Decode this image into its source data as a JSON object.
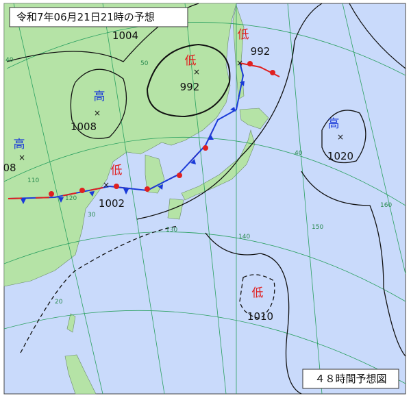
{
  "header": {
    "title": "令和7年06月21日21時の予想"
  },
  "footer": {
    "label": "４８時間予想図"
  },
  "systems": [
    {
      "kind": "低",
      "pressure": 992
    },
    {
      "kind": "低",
      "pressure": 992
    },
    {
      "kind": "高",
      "pressure": 1008
    },
    {
      "kind": "高",
      "pressure": "08"
    },
    {
      "kind": "低",
      "pressure": 1002
    },
    {
      "kind": "高",
      "pressure": 1020
    },
    {
      "kind": "低",
      "pressure": 1010
    }
  ],
  "isobar_labels": [
    1004
  ],
  "grid_labels": [
    "50",
    "40",
    "30",
    "20",
    "110",
    "120",
    "130",
    "140",
    "150",
    "160",
    "40"
  ]
}
